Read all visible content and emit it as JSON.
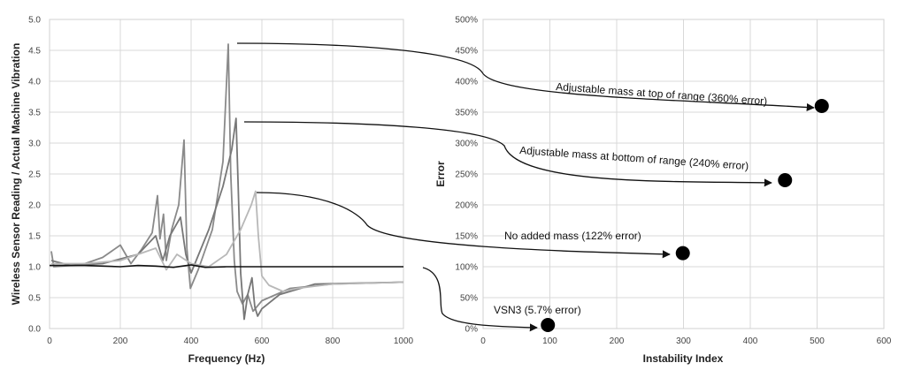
{
  "chart_data": [
    {
      "type": "line",
      "xlabel": "Frequency (Hz)",
      "ylabel": "Wireless Sensor Reading / Actual Machine Vibration",
      "xlim": [
        0,
        1000
      ],
      "ylim": [
        0,
        5.0
      ],
      "xticks": [
        "0",
        "200",
        "400",
        "600",
        "800",
        "1000"
      ],
      "yticks": [
        "0.0",
        "0.5",
        "1.0",
        "1.5",
        "2.0",
        "2.5",
        "3.0",
        "3.5",
        "4.0",
        "4.5",
        "5.0"
      ],
      "grid": true,
      "series": [
        {
          "name": "Adjustable mass at top of range",
          "color": "#8a8a8a",
          "points": [
            [
              5,
              1.25
            ],
            [
              12,
              1.0
            ],
            [
              60,
              1.02
            ],
            [
              100,
              1.05
            ],
            [
              150,
              1.15
            ],
            [
              200,
              1.35
            ],
            [
              230,
              1.05
            ],
            [
              260,
              1.28
            ],
            [
              290,
              1.55
            ],
            [
              305,
              2.15
            ],
            [
              312,
              1.45
            ],
            [
              322,
              1.85
            ],
            [
              330,
              1.1
            ],
            [
              345,
              1.6
            ],
            [
              365,
              2.0
            ],
            [
              380,
              3.05
            ],
            [
              388,
              1.3
            ],
            [
              398,
              0.65
            ],
            [
              420,
              0.95
            ],
            [
              460,
              1.6
            ],
            [
              490,
              2.7
            ],
            [
              505,
              4.6
            ],
            [
              512,
              2.5
            ],
            [
              522,
              1.1
            ],
            [
              530,
              0.6
            ],
            [
              545,
              0.4
            ],
            [
              560,
              0.55
            ],
            [
              575,
              0.28
            ],
            [
              600,
              0.45
            ],
            [
              680,
              0.65
            ],
            [
              800,
              0.72
            ],
            [
              1000,
              0.75
            ]
          ]
        },
        {
          "name": "Adjustable mass at bottom of range",
          "color": "#777777",
          "points": [
            [
              5,
              1.1
            ],
            [
              60,
              1.02
            ],
            [
              150,
              1.05
            ],
            [
              250,
              1.2
            ],
            [
              300,
              1.5
            ],
            [
              320,
              1.1
            ],
            [
              340,
              1.5
            ],
            [
              370,
              1.8
            ],
            [
              385,
              1.2
            ],
            [
              400,
              0.9
            ],
            [
              450,
              1.6
            ],
            [
              490,
              2.3
            ],
            [
              515,
              2.9
            ],
            [
              527,
              3.4
            ],
            [
              533,
              2.3
            ],
            [
              540,
              0.9
            ],
            [
              550,
              0.15
            ],
            [
              560,
              0.55
            ],
            [
              572,
              0.82
            ],
            [
              580,
              0.35
            ],
            [
              588,
              0.2
            ],
            [
              600,
              0.32
            ],
            [
              650,
              0.55
            ],
            [
              750,
              0.72
            ],
            [
              1000,
              0.75
            ]
          ]
        },
        {
          "name": "No added mass",
          "color": "#b8b8b8",
          "points": [
            [
              5,
              1.05
            ],
            [
              100,
              1.05
            ],
            [
              200,
              1.1
            ],
            [
              300,
              1.3
            ],
            [
              330,
              0.95
            ],
            [
              360,
              1.2
            ],
            [
              400,
              1.05
            ],
            [
              450,
              1.0
            ],
            [
              500,
              1.2
            ],
            [
              540,
              1.6
            ],
            [
              570,
              2.0
            ],
            [
              582,
              2.22
            ],
            [
              590,
              1.5
            ],
            [
              600,
              0.85
            ],
            [
              620,
              0.7
            ],
            [
              660,
              0.6
            ],
            [
              700,
              0.65
            ],
            [
              800,
              0.72
            ],
            [
              1000,
              0.75
            ]
          ]
        },
        {
          "name": "VSN3",
          "color": "#111111",
          "points": [
            [
              0,
              1.02
            ],
            [
              100,
              1.02
            ],
            [
              200,
              1.0
            ],
            [
              250,
              1.02
            ],
            [
              300,
              1.01
            ],
            [
              350,
              0.99
            ],
            [
              400,
              1.03
            ],
            [
              440,
              0.99
            ],
            [
              500,
              1.0
            ],
            [
              600,
              1.0
            ],
            [
              700,
              1.0
            ],
            [
              800,
              1.0
            ],
            [
              900,
              1.0
            ],
            [
              1000,
              1.0
            ]
          ]
        }
      ]
    },
    {
      "type": "scatter",
      "xlabel": "Instability Index",
      "ylabel": "Error",
      "xlim": [
        0,
        600
      ],
      "ylim": [
        0,
        500
      ],
      "xticks": [
        "0",
        "100",
        "200",
        "300",
        "400",
        "500",
        "600"
      ],
      "yticks": [
        "0%",
        "50%",
        "100%",
        "150%",
        "200%",
        "250%",
        "300%",
        "350%",
        "400%",
        "450%",
        "500%"
      ],
      "grid": true,
      "points": [
        {
          "x": 507,
          "y": 360,
          "label": "Adjustable mass at top of range (360% error)"
        },
        {
          "x": 452,
          "y": 240,
          "label": "Adjustable mass at bottom of range (240% error)"
        },
        {
          "x": 299,
          "y": 122,
          "label": "No added mass (122% error)"
        },
        {
          "x": 97,
          "y": 5.7,
          "label": "VSN3 (5.7% error)"
        }
      ]
    }
  ]
}
